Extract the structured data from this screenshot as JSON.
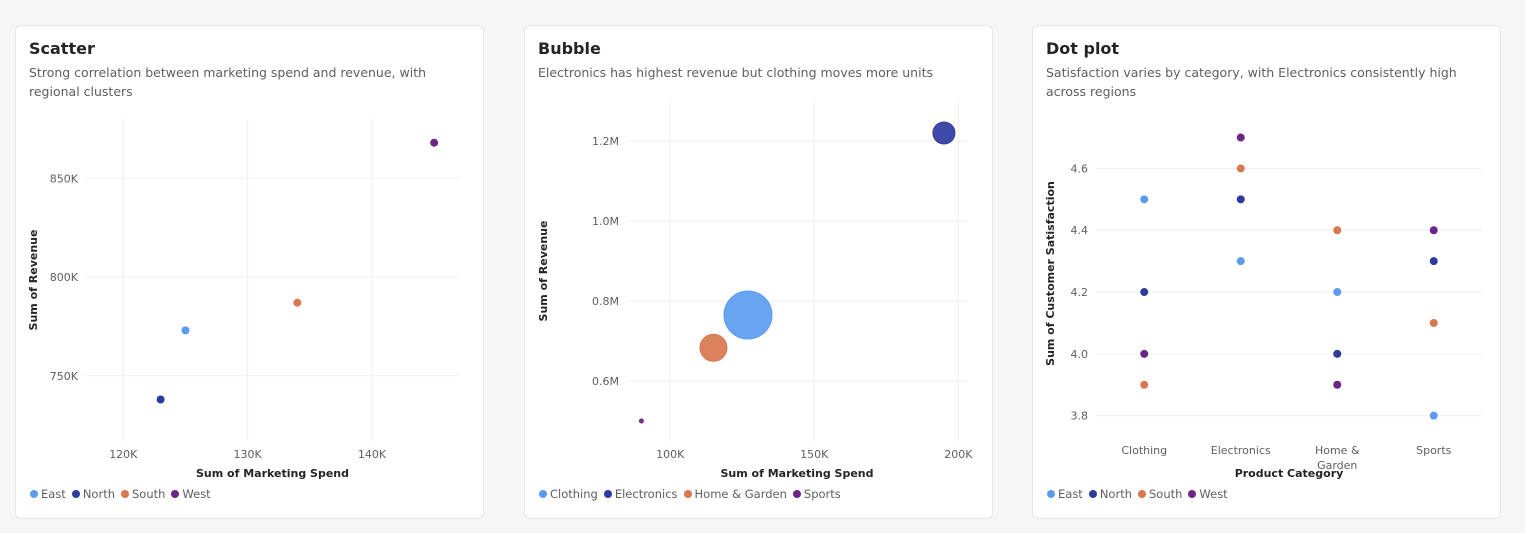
{
  "colors": {
    "East": "#5c9cf0",
    "North": "#2f3a9f",
    "South": "#d8784f",
    "West": "#6d2585",
    "Clothing": "#5c9cf0",
    "Electronics": "#2f3a9f",
    "Home & Garden": "#d8784f",
    "Sports": "#6d2585"
  },
  "chart_data": [
    {
      "id": "scatter",
      "type": "scatter",
      "title": "Scatter",
      "subtitle": "Strong correlation between marketing spend and revenue, with regional clusters",
      "xlabel": "Sum of Marketing Spend",
      "ylabel": "Sum of Revenue",
      "xlim": [
        117000,
        147000
      ],
      "ylim": [
        717000,
        880000
      ],
      "xticks": [
        {
          "v": 120000,
          "label": "120K"
        },
        {
          "v": 130000,
          "label": "130K"
        },
        {
          "v": 140000,
          "label": "140K"
        }
      ],
      "yticks": [
        {
          "v": 750000,
          "label": "750K"
        },
        {
          "v": 800000,
          "label": "800K"
        },
        {
          "v": 850000,
          "label": "850K"
        }
      ],
      "grid": true,
      "legend": [
        "East",
        "North",
        "South",
        "West"
      ],
      "points": [
        {
          "series": "East",
          "x": 125000,
          "y": 773000
        },
        {
          "series": "North",
          "x": 123000,
          "y": 738000
        },
        {
          "series": "South",
          "x": 134000,
          "y": 787000
        },
        {
          "series": "West",
          "x": 145000,
          "y": 868000
        }
      ]
    },
    {
      "id": "bubble",
      "type": "scatter",
      "title": "Bubble",
      "subtitle": "Electronics has highest revenue but clothing moves more units",
      "xlabel": "Sum of Marketing Spend",
      "ylabel": "Sum of Revenue",
      "xlim": [
        85000,
        203000
      ],
      "ylim": [
        450000,
        1300000
      ],
      "xticks": [
        {
          "v": 100000,
          "label": "100K"
        },
        {
          "v": 150000,
          "label": "150K"
        },
        {
          "v": 200000,
          "label": "200K"
        }
      ],
      "yticks": [
        {
          "v": 600000,
          "label": "0.6M"
        },
        {
          "v": 800000,
          "label": "0.8M"
        },
        {
          "v": 1000000,
          "label": "1.0M"
        },
        {
          "v": 1200000,
          "label": "1.2M"
        }
      ],
      "grid": true,
      "legend": [
        "Clothing",
        "Electronics",
        "Home & Garden",
        "Sports"
      ],
      "points": [
        {
          "series": "Clothing",
          "x": 127000,
          "y": 765000,
          "size": 24
        },
        {
          "series": "Electronics",
          "x": 195000,
          "y": 1220000,
          "size": 11
        },
        {
          "series": "Home & Garden",
          "x": 115000,
          "y": 683000,
          "size": 13.5
        },
        {
          "series": "Sports",
          "x": 90000,
          "y": 500000,
          "size": 2
        }
      ]
    },
    {
      "id": "dot",
      "type": "scatter",
      "title": "Dot plot",
      "subtitle": "Satisfaction varies by category, with Electronics consistently high across regions",
      "xlabel": "Product Category",
      "ylabel": "Sum of Customer Satisfaction",
      "categories": [
        "Clothing",
        "Electronics",
        "Home & Garden",
        "Sports"
      ],
      "ylim": [
        3.76,
        4.76
      ],
      "yticks": [
        {
          "v": 3.8,
          "label": "3.8"
        },
        {
          "v": 4.0,
          "label": "4.0"
        },
        {
          "v": 4.2,
          "label": "4.2"
        },
        {
          "v": 4.4,
          "label": "4.4"
        },
        {
          "v": 4.6,
          "label": "4.6"
        }
      ],
      "grid": true,
      "legend": [
        "East",
        "North",
        "South",
        "West"
      ],
      "points": [
        {
          "series": "East",
          "x": "Clothing",
          "y": 4.5
        },
        {
          "series": "North",
          "x": "Clothing",
          "y": 4.2
        },
        {
          "series": "West",
          "x": "Clothing",
          "y": 4.0
        },
        {
          "series": "South",
          "x": "Clothing",
          "y": 3.9
        },
        {
          "series": "West",
          "x": "Electronics",
          "y": 4.7
        },
        {
          "series": "South",
          "x": "Electronics",
          "y": 4.6
        },
        {
          "series": "North",
          "x": "Electronics",
          "y": 4.5
        },
        {
          "series": "East",
          "x": "Electronics",
          "y": 4.3
        },
        {
          "series": "South",
          "x": "Home & Garden",
          "y": 4.4
        },
        {
          "series": "East",
          "x": "Home & Garden",
          "y": 4.2
        },
        {
          "series": "North",
          "x": "Home & Garden",
          "y": 4.0
        },
        {
          "series": "West",
          "x": "Home & Garden",
          "y": 3.9
        },
        {
          "series": "West",
          "x": "Sports",
          "y": 4.4
        },
        {
          "series": "North",
          "x": "Sports",
          "y": 4.3
        },
        {
          "series": "South",
          "x": "Sports",
          "y": 4.1
        },
        {
          "series": "East",
          "x": "Sports",
          "y": 3.8
        }
      ]
    }
  ]
}
